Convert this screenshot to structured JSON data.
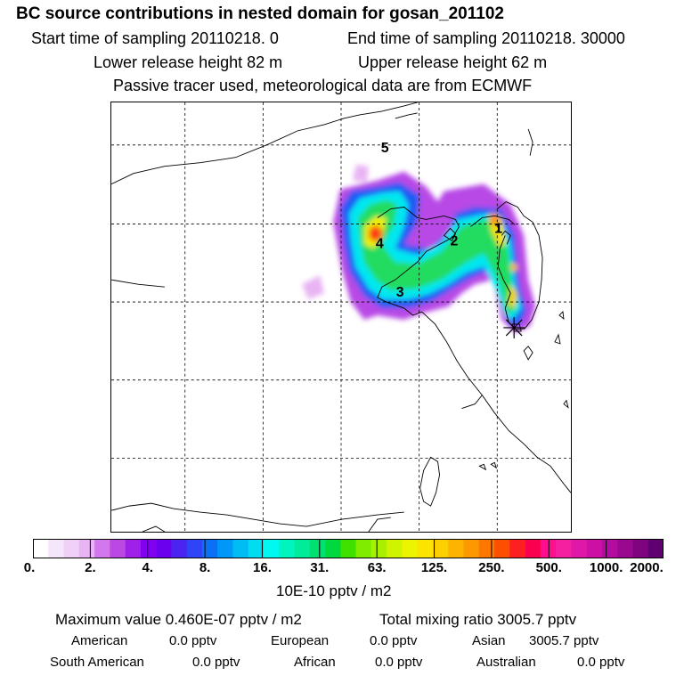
{
  "header": {
    "title": "BC  source contributions in nested domain for gosan_201102",
    "start_label": "Start time of sampling 20110218.     0",
    "end_label": "End time of sampling 20110218. 30000",
    "lower_label": "Lower release height   82 m",
    "upper_label": "Upper release height   62 m",
    "tracer_note": "Passive tracer used, meteorological data are from ECMWF"
  },
  "map": {
    "region_labels": [
      "5",
      "4",
      "3",
      "2",
      "1"
    ],
    "receptor_marker": "asterisk-icon"
  },
  "colorbar": {
    "ticks": [
      "0.",
      "2.",
      "4.",
      "8.",
      "16.",
      "31.",
      "63.",
      "125.",
      "250.",
      "500.",
      "1000.",
      "2000."
    ],
    "colors": [
      "#ffffff",
      "#f6e6fb",
      "#f0d0f7",
      "#e8b4f3",
      "#d278ec",
      "#bc48e4",
      "#a020e8",
      "#8200f0",
      "#6a00ee",
      "#4c24f0",
      "#2e44f6",
      "#0a70f6",
      "#0098f8",
      "#00bcf4",
      "#00dcf0",
      "#00f8f0",
      "#00f4c0",
      "#00ec98",
      "#00e070",
      "#00d840",
      "#40e000",
      "#80ec00",
      "#a8f000",
      "#d0f400",
      "#ecf400",
      "#fce400",
      "#fcd000",
      "#fcb400",
      "#fc9800",
      "#fc7800",
      "#fc5000",
      "#fc2020",
      "#fc0050",
      "#fc1090",
      "#f420a0",
      "#e018a8",
      "#cc10a4",
      "#b40ca0",
      "#9a0890",
      "#800480",
      "#600070"
    ],
    "unit_label": "10E-10 pptv / m2"
  },
  "stats": {
    "max_value": "Maximum value  0.460E-07 pptv / m2",
    "total_mixing": "Total mixing ratio     3005.7 pptv",
    "american_label": "American",
    "american_value": "0.0 pptv",
    "european_label": "European",
    "european_value": "0.0 pptv",
    "asian_label": "Asian",
    "asian_value": "3005.7 pptv",
    "south_american_label": "South American",
    "south_american_value": "0.0 pptv",
    "african_label": "African",
    "african_value": "0.0 pptv",
    "australian_label": "Australian",
    "australian_value": "0.0 pptv"
  }
}
